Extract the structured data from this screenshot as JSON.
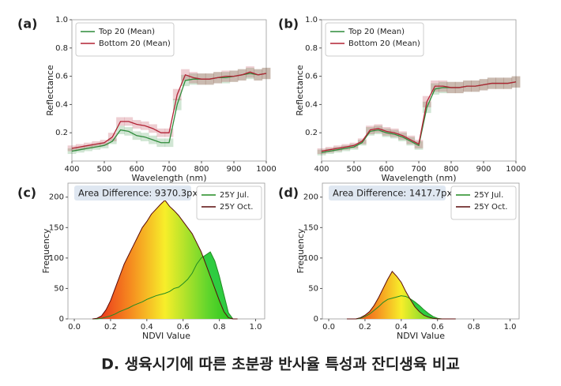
{
  "caption": "D. 생육시기에 따른 초분광 반사율 특성과 잔디생육 비교",
  "chart_data": [
    {
      "type": "line",
      "label": "(a)",
      "xlabel": "Wavelength (nm)",
      "ylabel": "Reflectance",
      "legend": "upper left",
      "x": [
        400,
        425,
        450,
        475,
        500,
        525,
        550,
        575,
        600,
        625,
        650,
        675,
        700,
        725,
        750,
        775,
        800,
        825,
        850,
        875,
        900,
        925,
        950,
        975,
        1000
      ],
      "series": [
        {
          "name": "Top 20 (Mean)",
          "color": "#2e8b3a",
          "values": [
            0.07,
            0.08,
            0.09,
            0.1,
            0.11,
            0.14,
            0.22,
            0.21,
            0.18,
            0.17,
            0.15,
            0.13,
            0.13,
            0.4,
            0.57,
            0.58,
            0.58,
            0.58,
            0.59,
            0.59,
            0.6,
            0.61,
            0.62,
            0.61,
            0.62
          ],
          "std": [
            0.02,
            0.02,
            0.02,
            0.02,
            0.02,
            0.02,
            0.03,
            0.03,
            0.03,
            0.03,
            0.03,
            0.03,
            0.03,
            0.04,
            0.04,
            0.04,
            0.04,
            0.04,
            0.04,
            0.04,
            0.04,
            0.04,
            0.04,
            0.04,
            0.04
          ]
        },
        {
          "name": "Bottom 20 (Mean)",
          "color": "#b22234",
          "values": [
            0.09,
            0.1,
            0.11,
            0.12,
            0.13,
            0.17,
            0.28,
            0.28,
            0.26,
            0.25,
            0.23,
            0.2,
            0.2,
            0.47,
            0.61,
            0.59,
            0.58,
            0.58,
            0.59,
            0.6,
            0.6,
            0.61,
            0.63,
            0.61,
            0.62
          ],
          "std": [
            0.02,
            0.02,
            0.02,
            0.02,
            0.02,
            0.03,
            0.03,
            0.03,
            0.03,
            0.03,
            0.03,
            0.03,
            0.03,
            0.04,
            0.04,
            0.04,
            0.04,
            0.04,
            0.04,
            0.04,
            0.04,
            0.04,
            0.04,
            0.04,
            0.04
          ]
        }
      ],
      "xlim": [
        400,
        1000
      ],
      "ylim": [
        0,
        1
      ],
      "xticks": [
        400,
        500,
        600,
        700,
        800,
        900,
        1000
      ],
      "yticks": [
        0.2,
        0.4,
        0.6,
        0.8,
        {
          "value": 1,
          "label": "1.0"
        }
      ]
    },
    {
      "type": "line",
      "label": "(b)",
      "xlabel": "Wavelength (nm)",
      "ylabel": "Reflectance",
      "legend": "upper left",
      "x": [
        400,
        425,
        450,
        475,
        500,
        525,
        550,
        575,
        600,
        625,
        650,
        675,
        700,
        725,
        750,
        775,
        800,
        825,
        850,
        875,
        900,
        925,
        950,
        975,
        1000
      ],
      "series": [
        {
          "name": "Top 20 (Mean)",
          "color": "#2e8b3a",
          "values": [
            0.06,
            0.07,
            0.08,
            0.09,
            0.1,
            0.13,
            0.21,
            0.22,
            0.2,
            0.19,
            0.17,
            0.14,
            0.11,
            0.38,
            0.51,
            0.52,
            0.52,
            0.52,
            0.53,
            0.53,
            0.54,
            0.55,
            0.55,
            0.55,
            0.56
          ],
          "std": [
            0.02,
            0.02,
            0.02,
            0.02,
            0.02,
            0.02,
            0.03,
            0.03,
            0.03,
            0.03,
            0.03,
            0.03,
            0.03,
            0.04,
            0.04,
            0.04,
            0.04,
            0.04,
            0.04,
            0.04,
            0.04,
            0.04,
            0.04,
            0.04,
            0.04
          ]
        },
        {
          "name": "Bottom 20 (Mean)",
          "color": "#b22234",
          "values": [
            0.07,
            0.08,
            0.09,
            0.1,
            0.11,
            0.14,
            0.22,
            0.23,
            0.21,
            0.2,
            0.18,
            0.15,
            0.12,
            0.42,
            0.53,
            0.53,
            0.52,
            0.52,
            0.53,
            0.53,
            0.54,
            0.55,
            0.55,
            0.55,
            0.56
          ],
          "std": [
            0.02,
            0.02,
            0.02,
            0.02,
            0.02,
            0.02,
            0.03,
            0.03,
            0.03,
            0.03,
            0.03,
            0.03,
            0.03,
            0.04,
            0.04,
            0.04,
            0.04,
            0.04,
            0.04,
            0.04,
            0.04,
            0.04,
            0.04,
            0.04,
            0.04
          ]
        }
      ],
      "xlim": [
        400,
        1000
      ],
      "ylim": [
        0,
        1
      ],
      "xticks": [
        400,
        500,
        600,
        700,
        800,
        900,
        1000
      ],
      "yticks": [
        0.2,
        0.4,
        0.6,
        0.8,
        {
          "value": 1,
          "label": "1.0"
        }
      ]
    },
    {
      "type": "area",
      "label": "(c)",
      "xlabel": "NDVI Value",
      "ylabel": "Frequency",
      "legend": "upper right",
      "annotation": "Area Difference: 9370.3px",
      "x": [
        0.1,
        0.125,
        0.15,
        0.175,
        0.2,
        0.225,
        0.25,
        0.275,
        0.3,
        0.325,
        0.35,
        0.375,
        0.4,
        0.425,
        0.45,
        0.475,
        0.5,
        0.525,
        0.55,
        0.575,
        0.6,
        0.625,
        0.65,
        0.675,
        0.7,
        0.725,
        0.75,
        0.775,
        0.8,
        0.825,
        0.85,
        0.875,
        0.9
      ],
      "series": [
        {
          "name": "25Y Jul.",
          "color": "#228b22",
          "fill": "#2ecc40",
          "values": [
            0,
            0,
            1,
            3,
            5,
            8,
            12,
            15,
            18,
            22,
            25,
            28,
            32,
            35,
            38,
            40,
            42,
            45,
            50,
            52,
            58,
            65,
            75,
            90,
            100,
            105,
            110,
            95,
            70,
            40,
            10,
            0,
            0
          ]
        },
        {
          "name": "25Y Oct.",
          "color": "#5a0a0a",
          "fill": "gradient",
          "values": [
            0,
            1,
            5,
            15,
            30,
            50,
            70,
            90,
            105,
            120,
            135,
            150,
            160,
            172,
            180,
            188,
            195,
            185,
            178,
            170,
            160,
            150,
            140,
            125,
            110,
            90,
            70,
            50,
            30,
            12,
            2,
            0,
            0
          ]
        }
      ],
      "xlim": [
        -0.035,
        1.05
      ],
      "ylim": [
        0,
        223
      ],
      "xticks": [
        {
          "value": 0,
          "label": "0.0"
        },
        0.2,
        0.4,
        0.6,
        0.8,
        {
          "value": 1,
          "label": "1.0"
        }
      ],
      "yticks": [
        0,
        50,
        100,
        150,
        200
      ]
    },
    {
      "type": "area",
      "label": "(d)",
      "xlabel": "NDVI Value",
      "ylabel": "Frequency",
      "legend": "upper right",
      "annotation": "Area Difference: 1417.7px",
      "x": [
        0.1,
        0.125,
        0.15,
        0.175,
        0.2,
        0.225,
        0.25,
        0.275,
        0.3,
        0.325,
        0.35,
        0.375,
        0.4,
        0.425,
        0.45,
        0.475,
        0.5,
        0.525,
        0.55,
        0.575,
        0.6,
        0.625,
        0.65,
        0.675,
        0.7
      ],
      "series": [
        {
          "name": "25Y Jul.",
          "color": "#228b22",
          "fill": "#2ecc40",
          "values": [
            0,
            0,
            0,
            1,
            4,
            8,
            14,
            20,
            27,
            32,
            34,
            36,
            38,
            37,
            33,
            28,
            22,
            15,
            9,
            4,
            1,
            0,
            0,
            0,
            0
          ]
        },
        {
          "name": "25Y Oct.",
          "color": "#5a0a0a",
          "fill": "gradient",
          "values": [
            0,
            0,
            0,
            2,
            6,
            12,
            22,
            35,
            50,
            65,
            78,
            70,
            60,
            45,
            32,
            20,
            12,
            6,
            3,
            1,
            0,
            0,
            0,
            0,
            0
          ]
        }
      ],
      "xlim": [
        -0.035,
        1.05
      ],
      "ylim": [
        0,
        223
      ],
      "xticks": [
        {
          "value": 0,
          "label": "0.0"
        },
        0.2,
        0.4,
        0.6,
        0.8,
        {
          "value": 1,
          "label": "1.0"
        }
      ],
      "yticks": [
        0,
        50,
        100,
        150,
        200
      ]
    }
  ]
}
